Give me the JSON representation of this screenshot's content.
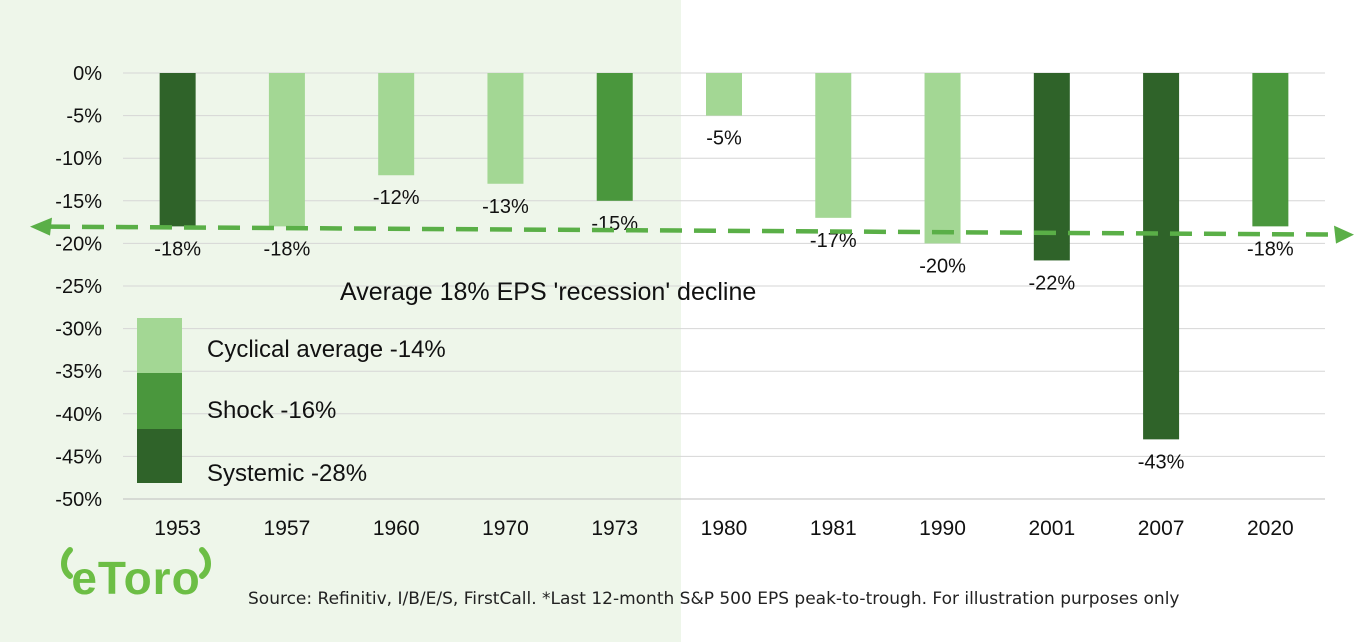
{
  "chart_data": {
    "type": "bar",
    "categories": [
      "1953",
      "1957",
      "1960",
      "1970",
      "1973",
      "1980",
      "1981",
      "1990",
      "2001",
      "2007",
      "2020"
    ],
    "values": [
      -18,
      -18,
      -12,
      -13,
      -15,
      -5,
      -17,
      -20,
      -22,
      -43,
      -18
    ],
    "value_labels": [
      "-18%",
      "-18%",
      "-12%",
      "-13%",
      "-15%",
      "-5%",
      "-17%",
      "-20%",
      "-22%",
      "-43%",
      "-18%"
    ],
    "bar_kind": [
      "Systemic",
      "Cyclical",
      "Cyclical",
      "Cyclical",
      "Shock",
      "Cyclical",
      "Cyclical",
      "Cyclical",
      "Systemic",
      "Systemic",
      "Shock"
    ],
    "y_ticks": [
      "0%",
      "-5%",
      "-10%",
      "-15%",
      "-20%",
      "-25%",
      "-30%",
      "-35%",
      "-40%",
      "-45%",
      "-50%"
    ],
    "ylim": [
      -50,
      0
    ],
    "grid": true,
    "average_line": {
      "value": -18.5,
      "label": "Average 18% EPS 'recession' decline"
    },
    "legend": [
      {
        "key": "Cyclical",
        "label": "Cyclical average -14%",
        "color": "#a3d794"
      },
      {
        "key": "Shock",
        "label": "Shock -16%",
        "color": "#4a973d"
      },
      {
        "key": "Systemic",
        "label": "Systemic -28%",
        "color": "#2f6329"
      }
    ],
    "legend_position": "bottom-left",
    "shaded_region_color": "#eef6ea",
    "average_line_color": "#5aaf47"
  },
  "brand": {
    "logo_text": "eToro",
    "color": "#6cbe45"
  },
  "footer": {
    "source": "Source: Refinitiv, I/B/E/S, FirstCall. *Last 12-month S&P 500 EPS peak-to-trough. For illustration purposes only"
  }
}
